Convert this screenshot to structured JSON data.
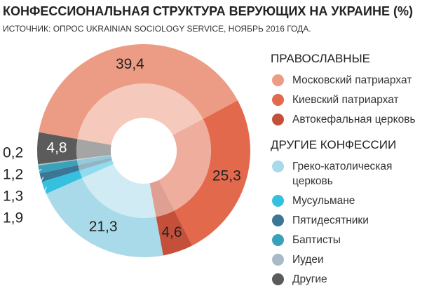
{
  "chart_data": {
    "type": "donut",
    "title": "КОНФЕССИОНАЛЬНАЯ СТРУКТУРА ВЕРУЮЩИХ НА УКРАИНЕ (%)",
    "subtitle": "ИСТОЧНИК: ОПРОС UKRAINIAN SOCIOLOGY SERVICE, НОЯБРЬ 2016 ГОДА.",
    "series": [
      {
        "name": "ПРАВОСЛАВНЫЕ",
        "categories": [
          "Московский патриархат",
          "Киевский патриархат",
          "Автокефальная церковь"
        ],
        "values": [
          39.4,
          25.3,
          4.6
        ],
        "value_labels": [
          "39,4",
          "25,3",
          "4,6"
        ],
        "colors": [
          "#ec9c84",
          "#e2694c",
          "#c5503a"
        ]
      },
      {
        "name": "ДРУГИЕ КОНФЕССИИ",
        "categories": [
          "Греко-католическая церковь",
          "Мусульмане",
          "Пятидесятники",
          "Баптисты",
          "Иудеи",
          "Другие"
        ],
        "values": [
          21.3,
          1.9,
          1.3,
          1.2,
          0.2,
          4.8
        ],
        "value_labels": [
          "21,3",
          "1,9",
          "1,3",
          "1,2",
          "0,2",
          "4,8"
        ],
        "colors": [
          "#a9dae9",
          "#35c0e0",
          "#3b7696",
          "#3aa1ba",
          "#a9bac6",
          "#5b5b5b"
        ]
      }
    ]
  }
}
